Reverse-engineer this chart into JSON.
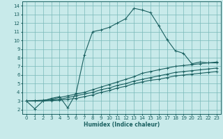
{
  "bg_color": "#c8eaea",
  "grid_color": "#78b8b8",
  "line_color": "#1a6060",
  "xlabel": "Humidex (Indice chaleur)",
  "xlim": [
    -0.5,
    23.5
  ],
  "ylim": [
    1.5,
    14.5
  ],
  "yticks": [
    2,
    3,
    4,
    5,
    6,
    7,
    8,
    9,
    10,
    11,
    12,
    13,
    14
  ],
  "xticks": [
    0,
    1,
    2,
    3,
    4,
    5,
    6,
    7,
    8,
    9,
    10,
    11,
    12,
    13,
    14,
    15,
    16,
    17,
    18,
    19,
    20,
    21,
    22,
    23
  ],
  "series1": {
    "x": [
      0,
      1,
      2,
      3,
      4,
      5,
      6,
      7,
      8,
      9,
      10,
      11,
      12,
      13,
      14,
      15,
      16,
      17,
      18,
      19,
      20,
      21,
      22,
      23
    ],
    "y": [
      3.0,
      2.1,
      3.0,
      3.3,
      3.5,
      2.2,
      3.9,
      8.3,
      11.0,
      11.2,
      11.5,
      12.0,
      12.5,
      13.7,
      13.5,
      13.2,
      11.7,
      10.1,
      8.8,
      8.5,
      7.3,
      7.5,
      7.4,
      7.4
    ]
  },
  "series2": {
    "x": [
      0,
      1,
      2,
      3,
      4,
      5,
      6,
      7,
      8,
      9,
      10,
      11,
      12,
      13,
      14,
      15,
      16,
      17,
      18,
      19,
      20,
      21,
      22,
      23
    ],
    "y": [
      3.0,
      3.05,
      3.1,
      3.2,
      3.4,
      3.6,
      3.8,
      4.0,
      4.3,
      4.6,
      4.9,
      5.2,
      5.5,
      5.8,
      6.2,
      6.4,
      6.6,
      6.8,
      7.0,
      7.1,
      7.2,
      7.3,
      7.4,
      7.5
    ]
  },
  "series3": {
    "x": [
      0,
      1,
      2,
      3,
      4,
      5,
      6,
      7,
      8,
      9,
      10,
      11,
      12,
      13,
      14,
      15,
      16,
      17,
      18,
      19,
      20,
      21,
      22,
      23
    ],
    "y": [
      3.0,
      3.0,
      3.05,
      3.1,
      3.2,
      3.4,
      3.6,
      3.8,
      4.0,
      4.3,
      4.5,
      4.8,
      5.0,
      5.3,
      5.5,
      5.7,
      5.9,
      6.1,
      6.3,
      6.4,
      6.5,
      6.6,
      6.7,
      6.8
    ]
  },
  "series4": {
    "x": [
      0,
      1,
      2,
      3,
      4,
      5,
      6,
      7,
      8,
      9,
      10,
      11,
      12,
      13,
      14,
      15,
      16,
      17,
      18,
      19,
      20,
      21,
      22,
      23
    ],
    "y": [
      3.0,
      3.0,
      3.0,
      3.05,
      3.1,
      3.2,
      3.3,
      3.5,
      3.7,
      4.0,
      4.2,
      4.5,
      4.7,
      5.0,
      5.2,
      5.4,
      5.5,
      5.7,
      5.9,
      6.0,
      6.1,
      6.2,
      6.3,
      6.4
    ]
  }
}
